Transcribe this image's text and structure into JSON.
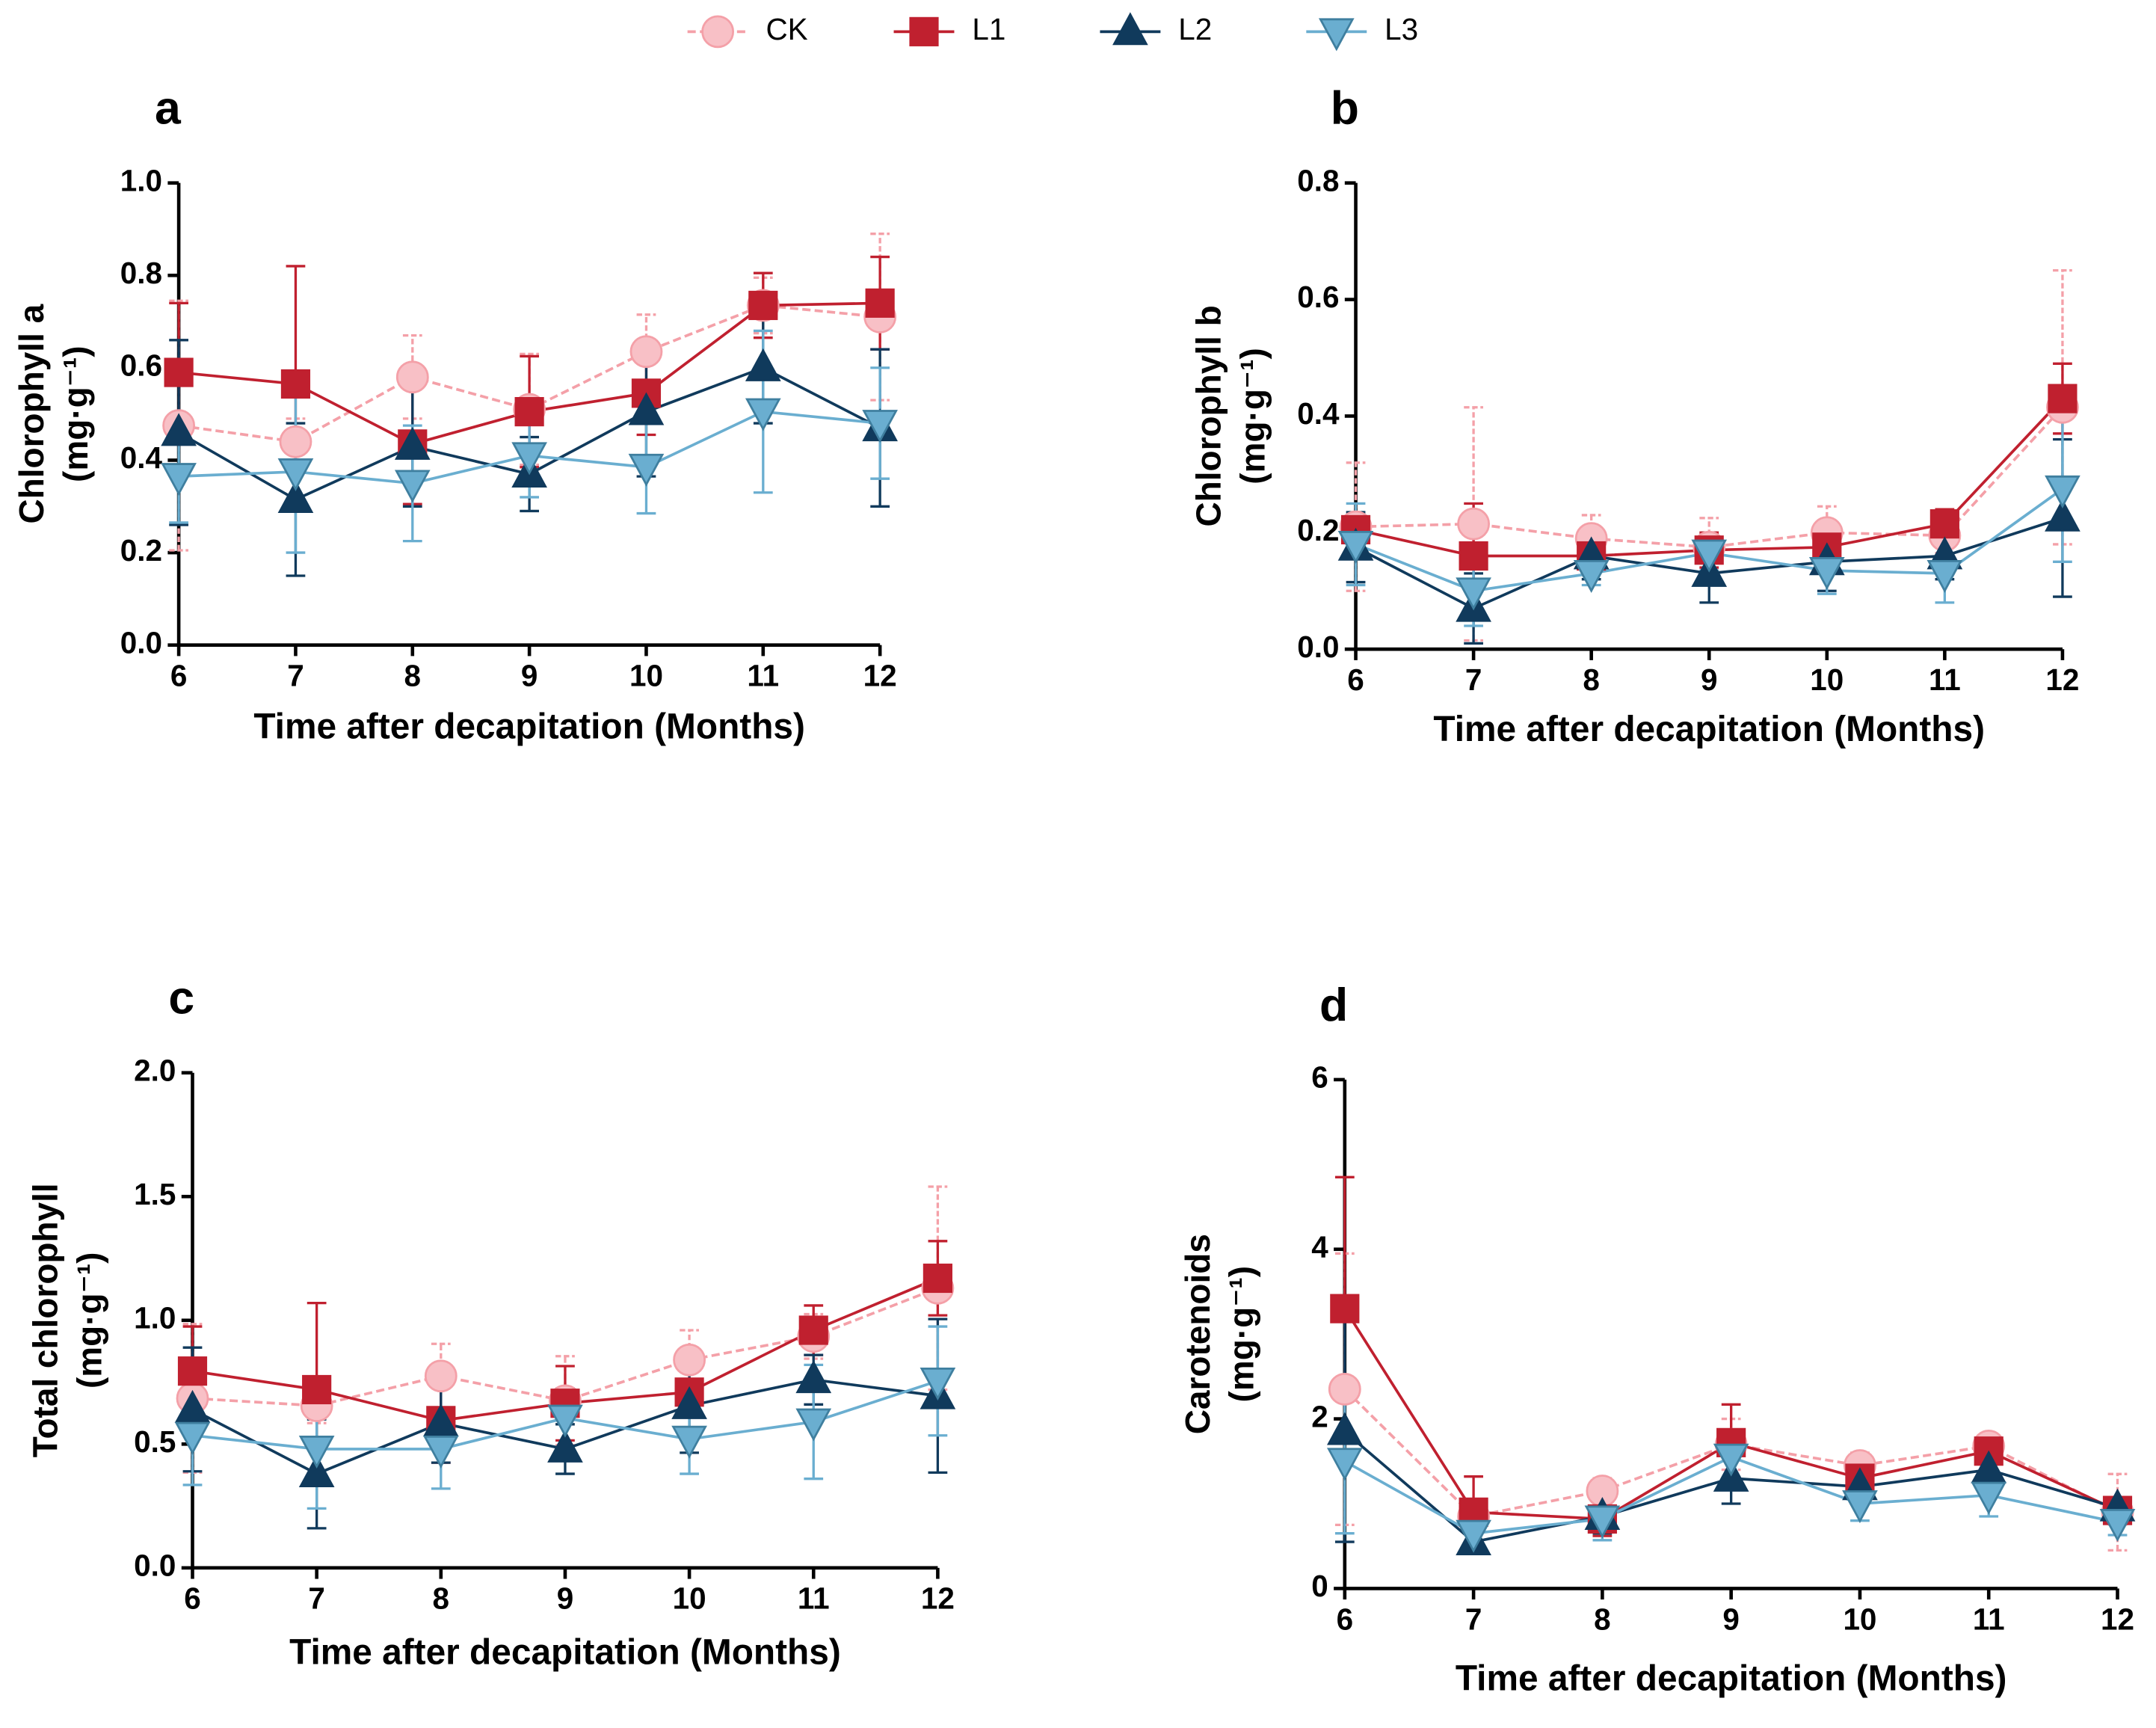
{
  "chart_data": [
    {
      "type": "line",
      "title": "a",
      "xlabel": "Time after decapitation (Months)",
      "ylabel": [
        "Chlorophyll a",
        "(mg·g⁻¹)"
      ],
      "x": [
        6,
        7,
        8,
        9,
        10,
        11,
        12
      ],
      "xlim": [
        6,
        12
      ],
      "xticks": [
        6,
        7,
        8,
        9,
        10,
        11,
        12
      ],
      "ylim": [
        0,
        1
      ],
      "yticks": [
        {
          "value": 0,
          "label": "0.0"
        },
        {
          "value": 0.2,
          "label": "0.2"
        },
        {
          "value": 0.4,
          "label": "0.4"
        },
        {
          "value": 0.6,
          "label": "0.6"
        },
        {
          "value": 0.8,
          "label": "0.8"
        },
        {
          "value": 1,
          "label": "1.0"
        }
      ],
      "series": [
        {
          "name": "CK",
          "color": "#f4a0a8",
          "marker": "circle",
          "linestyle": "dashed",
          "values": [
            0.475,
            0.44,
            0.58,
            0.51,
            0.635,
            0.735,
            0.71
          ],
          "errors": [
            0.27,
            0.05,
            0.09,
            0.12,
            0.08,
            0.06,
            0.18
          ]
        },
        {
          "name": "L1",
          "color": "#c0202f",
          "marker": "square",
          "linestyle": "solid",
          "values": [
            0.59,
            0.565,
            0.435,
            0.505,
            0.545,
            0.735,
            0.74
          ],
          "errors": [
            0.15,
            0.255,
            0.13,
            0.12,
            0.09,
            0.07,
            0.1
          ]
        },
        {
          "name": "L2",
          "color": "#103a5c",
          "marker": "triangle-up",
          "linestyle": "solid",
          "values": [
            0.46,
            0.315,
            0.43,
            0.37,
            0.505,
            0.6,
            0.47
          ],
          "errors": [
            0.2,
            0.165,
            0.13,
            0.08,
            0.14,
            0.12,
            0.17
          ]
        },
        {
          "name": "L3",
          "color": "#6aaed0",
          "marker": "triangle-down",
          "linestyle": "solid",
          "values": [
            0.365,
            0.375,
            0.35,
            0.41,
            0.385,
            0.505,
            0.48
          ],
          "errors": [
            0.1,
            0.175,
            0.125,
            0.09,
            0.1,
            0.175,
            0.12
          ]
        }
      ]
    },
    {
      "type": "line",
      "title": "b",
      "xlabel": "Time after decapitation (Months)",
      "ylabel": [
        "Chlorophyll b",
        "(mg·g⁻¹)"
      ],
      "x": [
        6,
        7,
        8,
        9,
        10,
        11,
        12
      ],
      "xlim": [
        6,
        12
      ],
      "xticks": [
        6,
        7,
        8,
        9,
        10,
        11,
        12
      ],
      "ylim": [
        0,
        0.8
      ],
      "yticks": [
        {
          "value": 0,
          "label": "0.0"
        },
        {
          "value": 0.2,
          "label": "0.2"
        },
        {
          "value": 0.4,
          "label": "0.4"
        },
        {
          "value": 0.6,
          "label": "0.6"
        },
        {
          "value": 0.8,
          "label": "0.8"
        }
      ],
      "series": [
        {
          "color": "#f4a0a8",
          "marker": "circle",
          "linestyle": "dashed",
          "values": [
            0.21,
            0.215,
            0.19,
            0.175,
            0.2,
            0.195,
            0.415
          ],
          "errors": [
            0.11,
            0.2,
            0.04,
            0.05,
            0.045,
            0.03,
            0.235
          ]
        },
        {
          "color": "#c0202f",
          "marker": "square",
          "linestyle": "solid",
          "values": [
            0.205,
            0.16,
            0.16,
            0.17,
            0.175,
            0.215,
            0.43
          ],
          "errors": [
            0.02,
            0.09,
            0.03,
            0.03,
            0.03,
            0.025,
            0.06
          ]
        },
        {
          "color": "#103a5c",
          "marker": "triangle-up",
          "linestyle": "solid",
          "values": [
            0.175,
            0.07,
            0.16,
            0.13,
            0.15,
            0.16,
            0.225
          ],
          "errors": [
            0.06,
            0.06,
            0.04,
            0.05,
            0.05,
            0.04,
            0.135
          ]
        },
        {
          "color": "#6aaed0",
          "marker": "triangle-down",
          "linestyle": "solid",
          "values": [
            0.18,
            0.1,
            0.13,
            0.165,
            0.135,
            0.13,
            0.275
          ],
          "errors": [
            0.07,
            0.06,
            0.02,
            0.03,
            0.04,
            0.05,
            0.125
          ]
        }
      ]
    },
    {
      "type": "line",
      "title": "c",
      "xlabel": "Time after decapitation (Months)",
      "ylabel": [
        "Total chlorophyll",
        "(mg·g⁻¹)"
      ],
      "x": [
        6,
        7,
        8,
        9,
        10,
        11,
        12
      ],
      "xlim": [
        6,
        12
      ],
      "xticks": [
        6,
        7,
        8,
        9,
        10,
        11,
        12
      ],
      "ylim": [
        0,
        2
      ],
      "yticks": [
        {
          "value": 0,
          "label": "0.0"
        },
        {
          "value": 0.5,
          "label": "0.5"
        },
        {
          "value": 1,
          "label": "1.0"
        },
        {
          "value": 1.5,
          "label": "1.5"
        },
        {
          "value": 2,
          "label": "2.0"
        }
      ],
      "series": [
        {
          "color": "#f4a0a8",
          "marker": "circle",
          "linestyle": "dashed",
          "values": [
            0.685,
            0.655,
            0.775,
            0.675,
            0.84,
            0.935,
            1.13
          ],
          "errors": [
            0.3,
            0.07,
            0.13,
            0.18,
            0.12,
            0.09,
            0.41
          ]
        },
        {
          "color": "#c0202f",
          "marker": "square",
          "linestyle": "solid",
          "values": [
            0.795,
            0.72,
            0.595,
            0.665,
            0.71,
            0.96,
            1.17
          ],
          "errors": [
            0.18,
            0.35,
            0.17,
            0.15,
            0.1,
            0.1,
            0.15
          ]
        },
        {
          "color": "#103a5c",
          "marker": "triangle-up",
          "linestyle": "solid",
          "values": [
            0.64,
            0.38,
            0.585,
            0.48,
            0.655,
            0.76,
            0.695
          ],
          "errors": [
            0.25,
            0.22,
            0.16,
            0.1,
            0.19,
            0.1,
            0.31
          ]
        },
        {
          "color": "#6aaed0",
          "marker": "triangle-down",
          "linestyle": "solid",
          "values": [
            0.535,
            0.48,
            0.48,
            0.605,
            0.52,
            0.59,
            0.755
          ],
          "errors": [
            0.2,
            0.24,
            0.16,
            0.12,
            0.14,
            0.23,
            0.22
          ]
        }
      ]
    },
    {
      "type": "line",
      "title": "d",
      "xlabel": "Time after decapitation (Months)",
      "ylabel": [
        "Carotenoids",
        "(mg·g⁻¹)"
      ],
      "x": [
        6,
        7,
        8,
        9,
        10,
        11,
        12
      ],
      "xlim": [
        6,
        12
      ],
      "xticks": [
        6,
        7,
        8,
        9,
        10,
        11,
        12
      ],
      "ylim": [
        0,
        6
      ],
      "yticks": [
        0,
        2,
        4,
        6
      ],
      "series": [
        {
          "color": "#f4a0a8",
          "marker": "circle",
          "linestyle": "dashed",
          "values": [
            2.35,
            0.85,
            1.15,
            1.7,
            1.45,
            1.68,
            0.9
          ],
          "errors": [
            1.6,
            0.1,
            0.15,
            0.3,
            0.15,
            0.08,
            0.45
          ]
        },
        {
          "color": "#c0202f",
          "marker": "square",
          "linestyle": "solid",
          "values": [
            3.3,
            0.9,
            0.82,
            1.72,
            1.3,
            1.62,
            0.92
          ],
          "errors": [
            1.55,
            0.42,
            0.2,
            0.45,
            0.2,
            0.1,
            0.15
          ]
        },
        {
          "color": "#103a5c",
          "marker": "triangle-up",
          "linestyle": "solid",
          "values": [
            1.85,
            0.55,
            0.85,
            1.3,
            1.2,
            1.4,
            0.95
          ],
          "errors": [
            1.3,
            0.1,
            0.2,
            0.3,
            0.2,
            0.1,
            0.1
          ]
        },
        {
          "color": "#6aaed0",
          "marker": "triangle-down",
          "linestyle": "solid",
          "values": [
            1.5,
            0.65,
            0.82,
            1.55,
            1.0,
            1.1,
            0.78
          ],
          "errors": [
            0.85,
            0.1,
            0.25,
            0.25,
            0.2,
            0.25,
            0.15
          ]
        }
      ]
    }
  ]
}
